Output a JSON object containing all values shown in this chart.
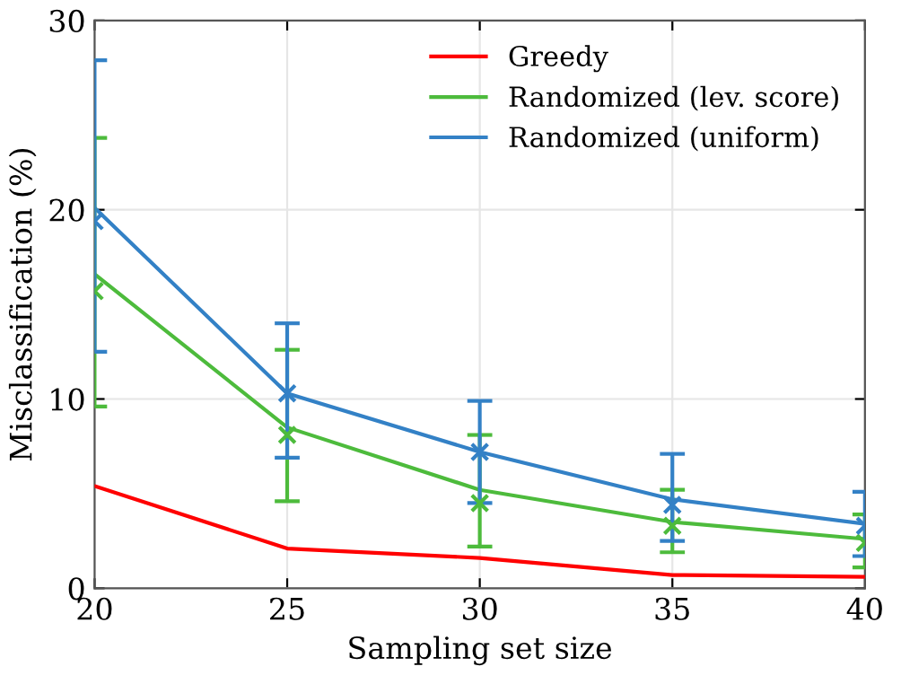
{
  "chart_data": {
    "type": "line",
    "xlabel": "Sampling set size",
    "ylabel": "Misclassification (%)",
    "x": [
      20,
      25,
      30,
      35,
      40
    ],
    "xlim": [
      20,
      40
    ],
    "xticks": [
      20,
      25,
      30,
      35,
      40
    ],
    "ylim": [
      0,
      30
    ],
    "yticks": [
      0,
      10,
      20,
      30
    ],
    "grid": true,
    "legend": "top right",
    "series": [
      {
        "name": "Greedy",
        "color": "#ff0000",
        "values": [
          5.4,
          2.1,
          1.6,
          0.7,
          0.6
        ]
      },
      {
        "name": "Randomized (lev. score)",
        "color": "#4dbb3c",
        "values": [
          16.6,
          8.5,
          5.2,
          3.5,
          2.6
        ]
      },
      {
        "name": "Randomized (uniform)",
        "color": "#3381c6",
        "values": [
          20.1,
          10.3,
          7.2,
          4.7,
          3.4
        ]
      },
      {
        "type": "scatter",
        "marker": "cross",
        "color": "#4dbb3c",
        "values": [
          15.7,
          8.1,
          4.5,
          3.3,
          2.4
        ],
        "errors": [
          [
            9.6,
            23.8
          ],
          [
            4.6,
            12.6
          ],
          [
            2.2,
            8.1
          ],
          [
            1.9,
            5.2
          ],
          [
            1.1,
            3.9
          ]
        ]
      },
      {
        "type": "scatter",
        "marker": "cross",
        "color": "#3381c6",
        "values": [
          19.4,
          10.3,
          7.2,
          4.4,
          3.3
        ],
        "errors": [
          [
            12.5,
            27.9
          ],
          [
            6.9,
            14.0
          ],
          [
            4.5,
            9.9
          ],
          [
            2.5,
            7.1
          ],
          [
            1.7,
            5.1
          ]
        ]
      }
    ]
  }
}
